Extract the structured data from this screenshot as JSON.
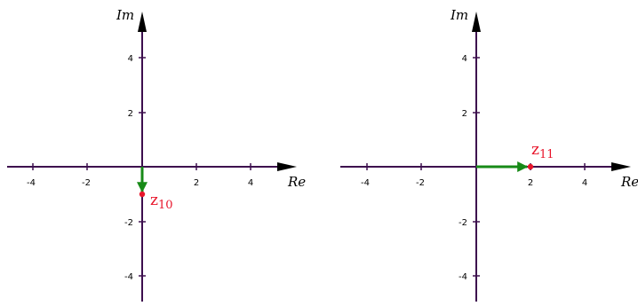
{
  "colors": {
    "axis": "#3d0f4e",
    "vector": "#178a17",
    "point": "#e8142a",
    "background": "#ffffff"
  },
  "panels": [
    {
      "re_label": "Re",
      "im_label": "Im",
      "x_ticks": [
        "-4",
        "-2",
        "2",
        "4"
      ],
      "y_ticks": [
        "4",
        "2",
        "-2",
        "-4"
      ],
      "point": {
        "re": 0,
        "im": -1,
        "label_main": "z",
        "label_sub": "10"
      }
    },
    {
      "re_label": "Re",
      "im_label": "Im",
      "x_ticks": [
        "-4",
        "-2",
        "2",
        "4"
      ],
      "y_ticks": [
        "4",
        "2",
        "-2",
        "-4"
      ],
      "point": {
        "re": 2,
        "im": 0,
        "label_main": "z",
        "label_sub": "11"
      }
    }
  ]
}
